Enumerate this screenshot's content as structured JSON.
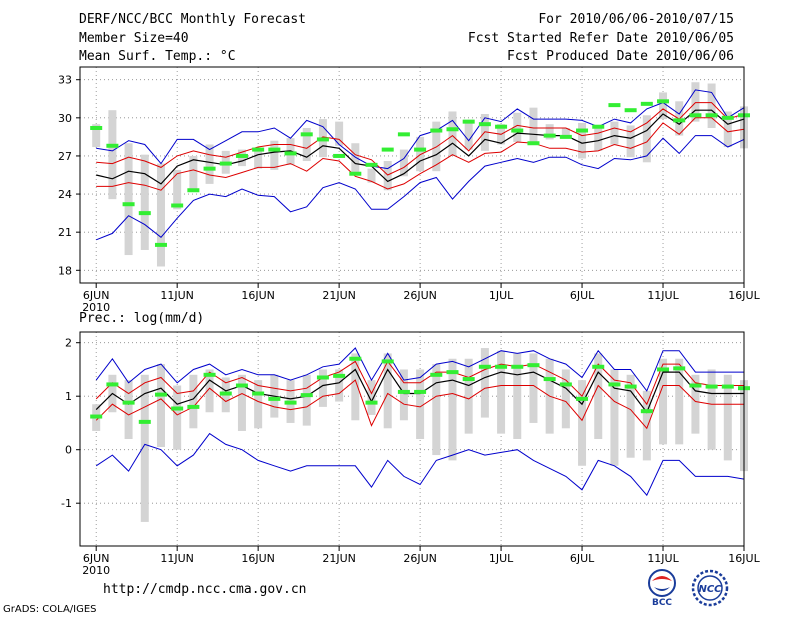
{
  "header": {
    "title": "DERF/NCC/BCC Monthly Forecast",
    "member_size": "Member Size=40",
    "variable": "Mean Surf. Temp.: °C",
    "period": "For 2010/06/06-2010/07/15",
    "fcst_started": "Fcst Started Refer Date 2010/06/05",
    "fcst_produced": "Fcst Produced Date 2010/06/06"
  },
  "footer": {
    "url": "http://cmdp.ncc.cma.gov.cn",
    "credit": "GrADS: COLA/IGES",
    "logo_bcc": "BCC",
    "logo_ncc": "NCC"
  },
  "colors": {
    "box": "#d4d4d4",
    "obs": "#33ee33",
    "mean": "#000000",
    "inner": "#dd0000",
    "outer": "#0000cc"
  },
  "chart_data": [
    {
      "type": "line",
      "title": "Mean Surf. Temp.: °C",
      "year_label": "2010",
      "xticks": [
        {
          "day": 0,
          "label": "6JUN"
        },
        {
          "day": 5,
          "label": "11JUN"
        },
        {
          "day": 10,
          "label": "16JUN"
        },
        {
          "day": 15,
          "label": "21JUN"
        },
        {
          "day": 20,
          "label": "26JUN"
        },
        {
          "day": 25,
          "label": "1JUL"
        },
        {
          "day": 30,
          "label": "6JUL"
        },
        {
          "day": 35,
          "label": "11JUL"
        },
        {
          "day": 40,
          "label": "16JUL"
        }
      ],
      "xlim": [
        -1,
        40
      ],
      "ylim": [
        17,
        34
      ],
      "yticks": [
        18,
        21,
        24,
        27,
        30,
        33
      ],
      "grid": true,
      "mean": [
        25.5,
        25.2,
        25.8,
        25.6,
        24.8,
        26.2,
        26.7,
        26.5,
        26.3,
        26.6,
        27.1,
        27.3,
        27.4,
        26.9,
        27.8,
        27.6,
        26.4,
        26.2,
        25.0,
        25.6,
        26.6,
        27.1,
        28.0,
        27.0,
        28.3,
        28.0,
        28.8,
        28.7,
        28.6,
        28.6,
        28.0,
        28.2,
        28.6,
        28.4,
        29.0,
        30.3,
        29.5,
        30.6,
        30.6,
        29.5,
        29.9
      ],
      "inner_low": [
        24.6,
        24.6,
        24.9,
        24.7,
        24.3,
        25.6,
        25.9,
        25.5,
        25.3,
        25.7,
        26.1,
        26.1,
        26.4,
        25.8,
        26.8,
        26.6,
        25.4,
        25.0,
        24.4,
        24.8,
        25.6,
        26.3,
        27.1,
        26.5,
        27.2,
        27.3,
        28.1,
        28.0,
        27.6,
        27.6,
        27.3,
        27.4,
        27.9,
        27.6,
        28.1,
        29.6,
        28.7,
        30.0,
        30.0,
        28.9,
        29.1
      ],
      "inner_high": [
        26.5,
        26.4,
        26.9,
        26.6,
        26.1,
        27.0,
        27.4,
        27.1,
        26.9,
        27.3,
        27.7,
        27.9,
        27.9,
        27.6,
        28.5,
        28.3,
        27.1,
        26.7,
        25.5,
        26.1,
        27.1,
        27.7,
        28.6,
        27.4,
        28.9,
        28.7,
        29.4,
        29.2,
        29.2,
        29.2,
        28.6,
        28.8,
        29.2,
        28.9,
        29.6,
        30.7,
        29.9,
        31.2,
        31.2,
        29.9,
        30.3
      ],
      "outer_low": [
        20.4,
        20.9,
        22.3,
        21.6,
        20.6,
        22.1,
        23.5,
        24.0,
        23.8,
        24.4,
        23.9,
        23.8,
        22.6,
        23.0,
        24.5,
        24.9,
        24.4,
        22.8,
        22.8,
        23.8,
        24.9,
        25.3,
        23.6,
        25.0,
        26.2,
        26.5,
        26.8,
        26.5,
        26.9,
        26.9,
        26.3,
        26.0,
        26.8,
        26.7,
        27.0,
        28.4,
        27.2,
        28.6,
        28.6,
        27.7,
        28.3
      ],
      "outer_high": [
        27.6,
        27.4,
        28.2,
        27.9,
        26.4,
        28.3,
        28.3,
        27.5,
        28.2,
        28.9,
        28.9,
        29.2,
        28.4,
        29.8,
        29.3,
        27.9,
        26.9,
        26.2,
        26.0,
        26.8,
        28.6,
        29.0,
        29.8,
        28.2,
        30.0,
        29.7,
        30.7,
        29.9,
        29.9,
        29.9,
        29.8,
        29.3,
        29.9,
        29.6,
        30.7,
        31.2,
        30.3,
        32.2,
        32.0,
        30.0,
        30.8
      ],
      "box_low": [
        27.7,
        23.6,
        19.2,
        19.6,
        18.3,
        22.8,
        24.3,
        24.8,
        25.6,
        26.2,
        26.0,
        25.9,
        26.3,
        26.6,
        26.9,
        27.8,
        25.5,
        24.9,
        24.3,
        25.4,
        25.8,
        25.8,
        27.0,
        27.5,
        27.4,
        27.9,
        28.1,
        28.1,
        28.3,
        28.4,
        26.8,
        27.4,
        27.9,
        26.9,
        26.5,
        29.9,
        28.6,
        29.7,
        29.2,
        27.7,
        27.6
      ],
      "box_high": [
        29.5,
        30.6,
        28.0,
        27.1,
        26.4,
        25.9,
        27.0,
        27.9,
        27.4,
        27.5,
        27.4,
        28.2,
        28.4,
        29.2,
        29.9,
        29.7,
        28.0,
        26.0,
        26.6,
        27.5,
        28.5,
        29.7,
        30.5,
        29.7,
        30.3,
        29.5,
        30.4,
        30.8,
        29.5,
        29.2,
        29.6,
        29.2,
        29.7,
        29.4,
        30.2,
        32.0,
        31.3,
        32.8,
        32.7,
        30.5,
        30.9
      ],
      "obs": [
        29.2,
        27.8,
        23.2,
        22.5,
        20.0,
        23.1,
        24.3,
        26.0,
        26.4,
        27.0,
        27.5,
        27.5,
        27.2,
        28.7,
        28.3,
        27.0,
        25.6,
        26.3,
        27.5,
        28.7,
        27.5,
        29.0,
        29.1,
        29.7,
        29.5,
        29.3,
        29.0,
        28.0,
        28.6,
        28.5,
        29.0,
        29.3,
        31.0,
        30.6,
        31.1,
        31.3,
        29.8,
        30.2,
        30.2,
        30.0,
        30.2
      ]
    },
    {
      "type": "line",
      "title": "Prec.: log(mm/d)",
      "year_label": "2010",
      "xticks": [
        {
          "day": 0,
          "label": "6JUN"
        },
        {
          "day": 5,
          "label": "11JUN"
        },
        {
          "day": 10,
          "label": "16JUN"
        },
        {
          "day": 15,
          "label": "21JUN"
        },
        {
          "day": 20,
          "label": "26JUN"
        },
        {
          "day": 25,
          "label": "1JUL"
        },
        {
          "day": 30,
          "label": "6JUL"
        },
        {
          "day": 35,
          "label": "11JUL"
        },
        {
          "day": 40,
          "label": "16JUL"
        }
      ],
      "xlim": [
        -1,
        40
      ],
      "ylim": [
        -1.8,
        2.2
      ],
      "yticks": [
        -1,
        0,
        1,
        2
      ],
      "grid": true,
      "mean": [
        0.75,
        1.05,
        0.85,
        1.05,
        1.15,
        0.85,
        0.95,
        1.3,
        1.1,
        1.2,
        1.05,
        1.0,
        0.95,
        1.0,
        1.2,
        1.25,
        1.5,
        0.9,
        1.5,
        1.05,
        1.05,
        1.25,
        1.3,
        1.2,
        1.35,
        1.45,
        1.4,
        1.45,
        1.3,
        1.15,
        0.85,
        1.45,
        1.15,
        1.1,
        0.7,
        1.45,
        1.45,
        1.1,
        1.05,
        1.05,
        1.05
      ],
      "inner_low": [
        0.55,
        0.85,
        0.65,
        0.8,
        0.95,
        0.65,
        0.8,
        1.15,
        0.9,
        1.05,
        0.9,
        0.8,
        0.75,
        0.8,
        1.0,
        1.05,
        1.3,
        0.45,
        1.05,
        0.85,
        0.8,
        1.0,
        1.05,
        0.95,
        1.15,
        1.2,
        1.2,
        1.2,
        1.0,
        0.9,
        0.55,
        1.2,
        0.9,
        0.75,
        0.4,
        1.2,
        1.2,
        0.9,
        0.85,
        0.85,
        0.85
      ],
      "inner_high": [
        0.95,
        1.25,
        1.05,
        1.25,
        1.35,
        1.05,
        1.1,
        1.45,
        1.25,
        1.35,
        1.2,
        1.15,
        1.1,
        1.15,
        1.35,
        1.45,
        1.65,
        1.05,
        1.65,
        1.25,
        1.25,
        1.45,
        1.45,
        1.35,
        1.5,
        1.6,
        1.55,
        1.6,
        1.45,
        1.3,
        1.0,
        1.6,
        1.3,
        1.25,
        0.85,
        1.6,
        1.6,
        1.25,
        1.2,
        1.2,
        1.2
      ],
      "outer_low": [
        -0.3,
        -0.1,
        -0.4,
        0.1,
        0.0,
        -0.3,
        -0.1,
        0.3,
        0.1,
        0.0,
        -0.2,
        -0.3,
        -0.4,
        -0.3,
        -0.3,
        -0.3,
        -0.3,
        -0.7,
        -0.2,
        -0.5,
        -0.65,
        -0.2,
        -0.1,
        0.0,
        -0.1,
        -0.05,
        0.0,
        -0.2,
        -0.35,
        -0.5,
        -0.75,
        -0.2,
        -0.3,
        -0.5,
        -0.85,
        -0.2,
        -0.2,
        -0.5,
        -0.5,
        -0.5,
        -0.55
      ],
      "outer_high": [
        1.3,
        1.7,
        1.25,
        1.5,
        1.6,
        1.25,
        1.5,
        1.6,
        1.4,
        1.5,
        1.4,
        1.4,
        1.3,
        1.4,
        1.55,
        1.6,
        1.9,
        1.3,
        1.8,
        1.3,
        1.35,
        1.6,
        1.65,
        1.55,
        1.7,
        1.85,
        1.8,
        1.85,
        1.7,
        1.6,
        1.35,
        1.85,
        1.5,
        1.5,
        1.1,
        1.85,
        1.85,
        1.45,
        1.45,
        1.45,
        1.45
      ],
      "box_low": [
        0.35,
        0.7,
        0.2,
        -1.35,
        0.05,
        0.0,
        0.4,
        0.7,
        0.7,
        0.35,
        0.4,
        0.6,
        0.5,
        0.45,
        0.8,
        0.9,
        0.55,
        0.65,
        0.4,
        0.55,
        0.2,
        -0.1,
        -0.2,
        0.3,
        0.6,
        0.3,
        0.2,
        0.5,
        0.3,
        0.4,
        -0.3,
        0.2,
        -0.3,
        -0.15,
        -0.2,
        0.1,
        0.1,
        0.3,
        0.0,
        -0.2,
        -0.4
      ],
      "box_high": [
        0.85,
        1.4,
        1.3,
        1.4,
        1.6,
        1.2,
        1.4,
        1.5,
        1.35,
        1.4,
        1.3,
        1.4,
        1.3,
        1.4,
        1.5,
        1.5,
        1.8,
        1.3,
        1.8,
        1.5,
        1.5,
        1.6,
        1.7,
        1.7,
        1.9,
        1.85,
        1.8,
        1.8,
        1.7,
        1.5,
        1.3,
        1.8,
        1.5,
        1.4,
        1.1,
        1.7,
        1.7,
        1.4,
        1.5,
        1.4,
        1.3
      ],
      "obs": [
        0.62,
        1.22,
        0.88,
        0.52,
        1.03,
        0.77,
        0.8,
        1.4,
        1.05,
        1.2,
        1.05,
        0.95,
        0.88,
        1.02,
        1.35,
        1.38,
        1.7,
        0.88,
        1.65,
        1.08,
        1.08,
        1.4,
        1.45,
        1.32,
        1.55,
        1.55,
        1.55,
        1.58,
        1.32,
        1.22,
        0.95,
        1.55,
        1.22,
        1.18,
        0.72,
        1.5,
        1.52,
        1.2,
        1.18,
        1.18,
        1.15
      ]
    }
  ]
}
